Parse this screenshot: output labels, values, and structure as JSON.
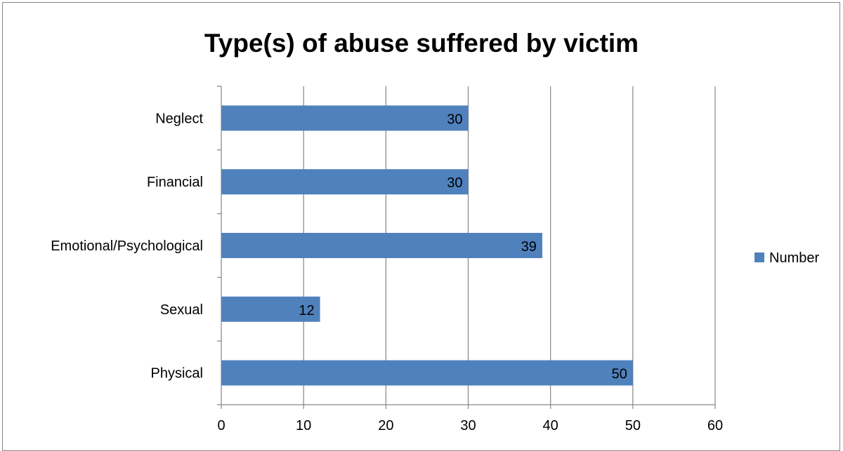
{
  "chart_data": {
    "type": "bar",
    "orientation": "horizontal",
    "title": "Type(s) of abuse suffered by victim",
    "categories": [
      "Physical",
      "Sexual",
      "Emotional/Psychological",
      "Financial",
      "Neglect"
    ],
    "series": [
      {
        "name": "Number",
        "values": [
          50,
          12,
          39,
          30,
          30
        ],
        "color": "#4f81bd"
      }
    ],
    "xlim": [
      0,
      60
    ],
    "xticks": [
      0,
      10,
      20,
      30,
      40,
      50,
      60
    ],
    "grid": "vertical",
    "legend": "right",
    "data_labels": true
  }
}
